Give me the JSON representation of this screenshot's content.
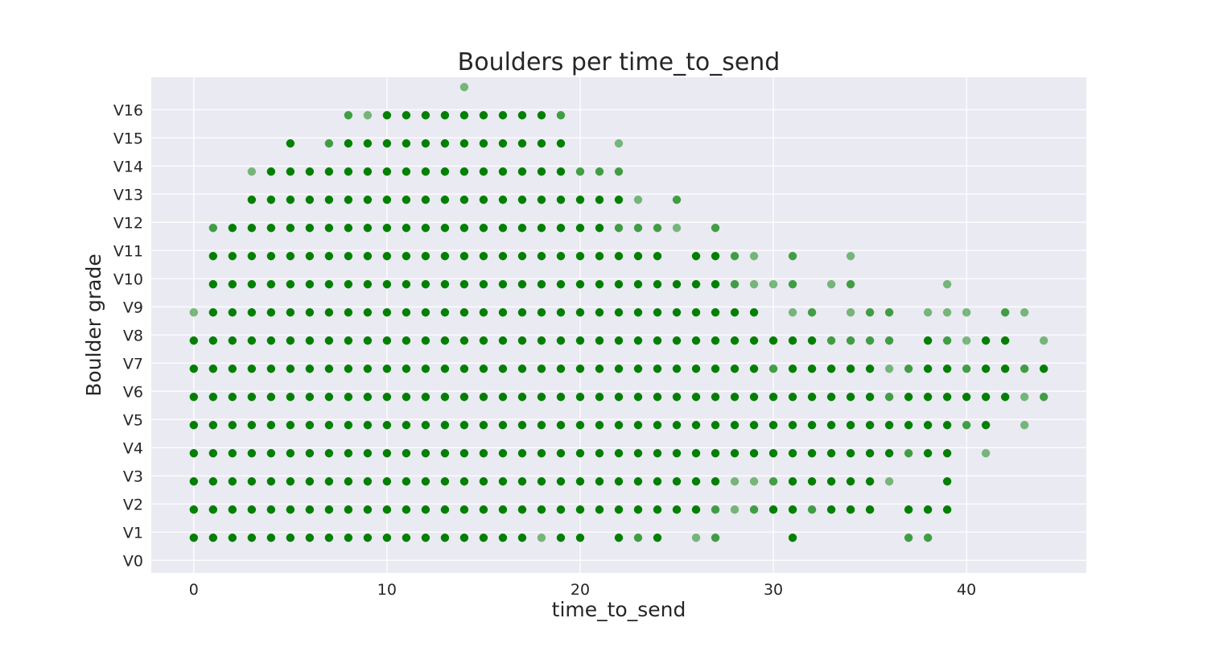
{
  "chart_data": {
    "type": "scatter",
    "title": "Boulders per time_to_send",
    "xlabel": "time_to_send",
    "ylabel": "Boulder grade",
    "xlim": [
      -2.2,
      46.2
    ],
    "ylim": [
      -0.45,
      17.15
    ],
    "x_ticks": [
      0,
      10,
      20,
      30,
      40
    ],
    "y_ticks": [
      0,
      1,
      2,
      3,
      4,
      5,
      6,
      7,
      8,
      9,
      10,
      11,
      12,
      13,
      14,
      15,
      16
    ],
    "y_tick_labels": [
      "V0",
      "V1",
      "V2",
      "V3",
      "V4",
      "V5",
      "V6",
      "V7",
      "V8",
      "V9",
      "V10",
      "V11",
      "V12",
      "V13",
      "V14",
      "V15",
      "V16"
    ],
    "grid": true,
    "background_color": "#eaeaf2",
    "marker_color": "#008000",
    "rows": [
      {
        "grade": 17,
        "light": [
          14
        ],
        "mid": [],
        "dark": []
      },
      {
        "grade": 16,
        "light": [
          9
        ],
        "mid": [
          8,
          19
        ],
        "dark": [
          10,
          11,
          12,
          13,
          14,
          15,
          16,
          17,
          18
        ]
      },
      {
        "grade": 15,
        "light": [
          22
        ],
        "mid": [
          7
        ],
        "dark": [
          5,
          8,
          9,
          10,
          11,
          12,
          13,
          14,
          15,
          16,
          17,
          18,
          19
        ]
      },
      {
        "grade": 14,
        "light": [
          3
        ],
        "mid": [
          20,
          21,
          22
        ],
        "dark": [
          4,
          5,
          6,
          7,
          8,
          9,
          10,
          11,
          12,
          13,
          14,
          15,
          16,
          17,
          18,
          19
        ]
      },
      {
        "grade": 13,
        "light": [
          23
        ],
        "mid": [
          25
        ],
        "dark": [
          3,
          4,
          5,
          6,
          7,
          8,
          9,
          10,
          11,
          12,
          13,
          14,
          15,
          16,
          17,
          18,
          19,
          20,
          21,
          22
        ]
      },
      {
        "grade": 12,
        "light": [
          25
        ],
        "mid": [
          1,
          22,
          23,
          24,
          27
        ],
        "dark": [
          2,
          3,
          4,
          5,
          6,
          7,
          8,
          9,
          10,
          11,
          12,
          13,
          14,
          15,
          16,
          17,
          18,
          19,
          20,
          21
        ]
      },
      {
        "grade": 11,
        "light": [
          29,
          34
        ],
        "mid": [
          28,
          31
        ],
        "dark": [
          1,
          2,
          3,
          4,
          5,
          6,
          7,
          8,
          9,
          10,
          11,
          12,
          13,
          14,
          15,
          16,
          17,
          18,
          19,
          20,
          21,
          22,
          23,
          24,
          26,
          27
        ]
      },
      {
        "grade": 10,
        "light": [
          29,
          30,
          33,
          39
        ],
        "mid": [
          28,
          31,
          34
        ],
        "dark": [
          1,
          2,
          3,
          4,
          5,
          6,
          7,
          8,
          9,
          10,
          11,
          12,
          13,
          14,
          15,
          16,
          17,
          18,
          19,
          20,
          21,
          22,
          23,
          24,
          25,
          26,
          27
        ]
      },
      {
        "grade": 9,
        "light": [
          0,
          31,
          34,
          38,
          39,
          40,
          43
        ],
        "mid": [
          32,
          35,
          36,
          42
        ],
        "dark": [
          1,
          2,
          3,
          4,
          5,
          6,
          7,
          8,
          9,
          10,
          11,
          12,
          13,
          14,
          15,
          16,
          17,
          18,
          19,
          20,
          21,
          22,
          23,
          24,
          25,
          26,
          27,
          28,
          29
        ]
      },
      {
        "grade": 8,
        "light": [
          40,
          44
        ],
        "mid": [
          33,
          34,
          35,
          36,
          39
        ],
        "dark": [
          0,
          1,
          2,
          3,
          4,
          5,
          6,
          7,
          8,
          9,
          10,
          11,
          12,
          13,
          14,
          15,
          16,
          17,
          18,
          19,
          20,
          21,
          22,
          23,
          24,
          25,
          26,
          27,
          28,
          29,
          30,
          31,
          32,
          38,
          41,
          42
        ]
      },
      {
        "grade": 7,
        "light": [
          36
        ],
        "mid": [
          30,
          37,
          40,
          43
        ],
        "dark": [
          0,
          1,
          2,
          3,
          4,
          5,
          6,
          7,
          8,
          9,
          10,
          11,
          12,
          13,
          14,
          15,
          16,
          17,
          18,
          19,
          20,
          21,
          22,
          23,
          24,
          25,
          26,
          27,
          28,
          29,
          31,
          32,
          33,
          34,
          35,
          38,
          39,
          41,
          42,
          44
        ]
      },
      {
        "grade": 6,
        "light": [
          43
        ],
        "mid": [
          36,
          44
        ],
        "dark": [
          0,
          1,
          2,
          3,
          4,
          5,
          6,
          7,
          8,
          9,
          10,
          11,
          12,
          13,
          14,
          15,
          16,
          17,
          18,
          19,
          20,
          21,
          22,
          23,
          24,
          25,
          26,
          27,
          28,
          29,
          30,
          31,
          32,
          33,
          34,
          35,
          37,
          38,
          39,
          40,
          41,
          42
        ]
      },
      {
        "grade": 5,
        "light": [
          43
        ],
        "mid": [
          40
        ],
        "dark": [
          0,
          1,
          2,
          3,
          4,
          5,
          6,
          7,
          8,
          9,
          10,
          11,
          12,
          13,
          14,
          15,
          16,
          17,
          18,
          19,
          20,
          21,
          22,
          23,
          24,
          25,
          26,
          27,
          28,
          29,
          30,
          31,
          32,
          33,
          34,
          35,
          36,
          37,
          38,
          39,
          41
        ]
      },
      {
        "grade": 4,
        "light": [
          41
        ],
        "mid": [
          37
        ],
        "dark": [
          0,
          1,
          2,
          3,
          4,
          5,
          6,
          7,
          8,
          9,
          10,
          11,
          12,
          13,
          14,
          15,
          16,
          17,
          18,
          19,
          20,
          21,
          22,
          23,
          24,
          25,
          26,
          27,
          28,
          29,
          30,
          31,
          32,
          33,
          34,
          35,
          36,
          38,
          39
        ]
      },
      {
        "grade": 3,
        "light": [
          28,
          29,
          36
        ],
        "mid": [
          30
        ],
        "dark": [
          0,
          1,
          2,
          3,
          4,
          5,
          6,
          7,
          8,
          9,
          10,
          11,
          12,
          13,
          14,
          15,
          16,
          17,
          18,
          19,
          20,
          21,
          22,
          23,
          24,
          25,
          26,
          27,
          31,
          32,
          33,
          34,
          35,
          39
        ]
      },
      {
        "grade": 2,
        "light": [
          28
        ],
        "mid": [
          27,
          29,
          32
        ],
        "dark": [
          0,
          1,
          2,
          3,
          4,
          5,
          6,
          7,
          8,
          9,
          10,
          11,
          12,
          13,
          14,
          15,
          16,
          17,
          18,
          19,
          20,
          21,
          22,
          23,
          24,
          25,
          26,
          30,
          31,
          33,
          34,
          35,
          37,
          38,
          39
        ]
      },
      {
        "grade": 1,
        "light": [
          18,
          26
        ],
        "mid": [
          23,
          27,
          37,
          38
        ],
        "dark": [
          0,
          1,
          2,
          3,
          4,
          5,
          6,
          7,
          8,
          9,
          10,
          11,
          12,
          13,
          14,
          15,
          16,
          17,
          19,
          20,
          22,
          24,
          31
        ]
      }
    ]
  }
}
